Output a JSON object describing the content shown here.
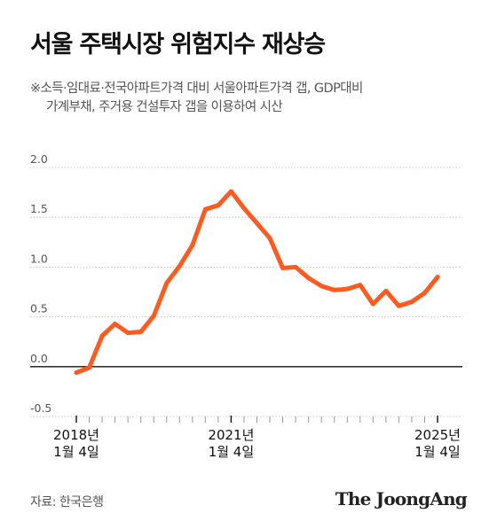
{
  "title": "서울 주택시장 위험지수 재상승",
  "subtitle_line1": "※소득·임대료·전국아파트가격 대비 서울아파트가격 갭, GDP대비",
  "subtitle_line2": "가계부채, 주거용 건설투자 갭을 이용하여 시산",
  "source": "자료: 한국은행",
  "brand": "The JoongAng",
  "colors": {
    "line": "#ff5a1f",
    "axis": "#111111",
    "grid": "#bbbbbb",
    "label": "#555555"
  },
  "chart_data": {
    "type": "line",
    "title": "",
    "xlabel": "",
    "ylabel": "",
    "ylim": [
      -0.5,
      2.0
    ],
    "yticks": [
      "2.0",
      "1.5",
      "1.0",
      "0.5",
      "0.0",
      "-0.5"
    ],
    "x_tick_labels": [
      {
        "line1": "2018년",
        "line2": "1월 4일"
      },
      {
        "line1": "2021년",
        "line2": "1월 4일"
      },
      {
        "line1": "2025년",
        "line2": "1월 4일"
      }
    ],
    "grid": true,
    "series": [
      {
        "values": [
          -0.06,
          -0.01,
          0.31,
          0.43,
          0.34,
          0.35,
          0.51,
          0.84,
          1.01,
          1.22,
          1.58,
          1.62,
          1.76,
          1.59,
          1.44,
          1.29,
          0.99,
          1.0,
          0.89,
          0.81,
          0.77,
          0.78,
          0.82,
          0.63,
          0.76,
          0.61,
          0.65,
          0.74,
          0.9
        ]
      }
    ]
  }
}
